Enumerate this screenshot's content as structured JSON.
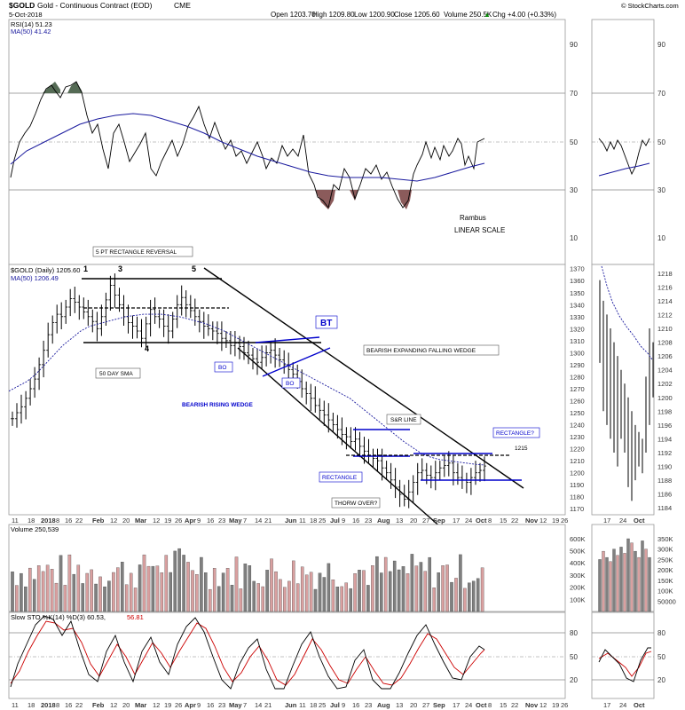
{
  "header": {
    "symbol": "$GOLD",
    "name": "Gold - Continuous Contract (EOD)",
    "exchange": "CME",
    "date": "5-Oct-2018",
    "open": "Open 1203.70",
    "high": "High 1209.80",
    "low": "Low 1200.90",
    "close": "Close 1205.60",
    "volume": "Volume 250.5K",
    "change": "Chg +4.00 (+0.33%)",
    "change_arrow": "▲",
    "watermark": "© StockCharts.com"
  },
  "colors": {
    "price_bar": "#000000",
    "ma_line": "#1a1a9e",
    "annotation_blue": "#0000cc",
    "volume_up": "#808080",
    "volume_down": "#d9a0a0",
    "rsi_overbought": "#556b55",
    "rsi_oversold": "#8b5b5b",
    "sto_d": "#cc0000"
  },
  "rsi_panel": {
    "title": "RSI(14) 51.23",
    "ma_label": "MA(50) 41.42",
    "ticks": [
      "90",
      "70",
      "50",
      "30",
      "10"
    ],
    "note1": "Rambus",
    "note2": "LINEAR SCALE"
  },
  "price_panel": {
    "title": "$GOLD (Daily) 1205.60",
    "ma_label": "MA(50) 1206.49",
    "ticks": [
      "1370",
      "1360",
      "1350",
      "1340",
      "1330",
      "1320",
      "1310",
      "1300",
      "1290",
      "1280",
      "1270",
      "1260",
      "1250",
      "1240",
      "1230",
      "1220",
      "1210",
      "1200",
      "1190",
      "1180",
      "1170"
    ],
    "weekly_ticks": [
      "1218",
      "1216",
      "1214",
      "1212",
      "1210",
      "1208",
      "1206",
      "1204",
      "1202",
      "1200",
      "1198",
      "1196",
      "1194",
      "1192",
      "1190",
      "1188",
      "1186",
      "1184"
    ],
    "annotations": {
      "rect_reversal": "5 PT RECTANGLE REVERSAL",
      "pt3": "3",
      "pt5": "5",
      "pt4": "4",
      "pt1": "1",
      "sma": "50 DAY SMA",
      "bo1": "BO",
      "bo2": "BO",
      "bt": "BT",
      "rising_wedge": "BEARISH RISING WEDGE",
      "falling_wedge": "BEARISH EXPANDING FALLING WEDGE",
      "sr_line": "S&R LINE",
      "rectangle": "RECTANGLE",
      "rectangle_q": "RECTANGLE?",
      "level": "1215",
      "throw_over": "THORW OVER?"
    }
  },
  "x_axis": {
    "labels": [
      "11",
      "18",
      "2018",
      "8",
      "16",
      "22",
      "Feb",
      "12",
      "20",
      "Mar",
      "12",
      "19",
      "26",
      "Apr",
      "9",
      "16",
      "23",
      "May",
      "7",
      "14",
      "21",
      "Jun",
      "11",
      "18",
      "25",
      "Jul",
      "9",
      "16",
      "23",
      "Aug",
      "13",
      "20",
      "27",
      "Sep",
      "17",
      "24",
      "Oct",
      "8",
      "15",
      "22",
      "Nov",
      "12",
      "19",
      "26"
    ],
    "weekly_labels": [
      "17",
      "24",
      "Oct"
    ]
  },
  "volume_panel": {
    "title": "Volume 250,539",
    "ticks": [
      "600K",
      "500K",
      "400K",
      "300K",
      "200K",
      "100K"
    ],
    "weekly_ticks": [
      "350K",
      "300K",
      "250K",
      "200K",
      "150K",
      "100K",
      "50000"
    ]
  },
  "sto_panel": {
    "title_a": "Slow STO %K(14) %D(3) 60.53,",
    "title_b": "56.81",
    "ticks": [
      "80",
      "50",
      "20"
    ]
  },
  "chart_data": {
    "type": "ohlc",
    "symbol": "$GOLD",
    "period": "Daily",
    "x_range": [
      "2017-12-11",
      "2018-10-05"
    ],
    "price_ylim": [
      1165,
      1372
    ],
    "series": [
      {
        "name": "$GOLD (Daily)",
        "close": [
          1245,
          1250,
          1255,
          1262,
          1270,
          1278,
          1290,
          1302,
          1315,
          1325,
          1332,
          1330,
          1338,
          1345,
          1342,
          1338,
          1334,
          1330,
          1326,
          1320,
          1330,
          1344,
          1356,
          1348,
          1340,
          1330,
          1325,
          1322,
          1318,
          1312,
          1324,
          1336,
          1330,
          1328,
          1322,
          1318,
          1328,
          1340,
          1346,
          1340,
          1335,
          1330,
          1326,
          1322,
          1320,
          1318,
          1316,
          1312,
          1310,
          1306,
          1308,
          1305,
          1300,
          1298,
          1295,
          1292,
          1296,
          1300,
          1302,
          1298,
          1294,
          1290,
          1286,
          1282,
          1276,
          1270,
          1266,
          1262,
          1256,
          1252,
          1248,
          1244,
          1240,
          1236,
          1232,
          1230,
          1226,
          1228,
          1222,
          1218,
          1214,
          1212,
          1210,
          1204,
          1200,
          1194,
          1188,
          1182,
          1178,
          1184,
          1192,
          1200,
          1202,
          1198,
          1196,
          1200,
          1204,
          1206,
          1208,
          1200,
          1196,
          1194,
          1192,
          1196,
          1200,
          1202,
          1205.6
        ]
      },
      {
        "name": "MA(50)",
        "values": [
          1268,
          1272,
          1276,
          1282,
          1290,
          1298,
          1306,
          1312,
          1318,
          1322,
          1324,
          1326,
          1328,
          1330,
          1331,
          1332,
          1332,
          1332,
          1331,
          1330,
          1328,
          1326,
          1324,
          1321,
          1318,
          1314,
          1310,
          1306,
          1302,
          1298,
          1294,
          1290,
          1286,
          1282,
          1278,
          1274,
          1270,
          1266,
          1262,
          1256,
          1250,
          1244,
          1238,
          1232,
          1226,
          1221,
          1216,
          1213,
          1211,
          1210,
          1209,
          1208,
          1207,
          1206.49
        ]
      }
    ],
    "rsi": {
      "name": "RSI(14)",
      "last": 51.23,
      "ma50_last": 41.42,
      "ylim": [
        0,
        100
      ],
      "levels": [
        30,
        70
      ]
    },
    "volume": {
      "name": "Volume",
      "last": 250539
    },
    "stochastic": {
      "name": "Slow STO %K(14) %D(3)",
      "k": 60.53,
      "d": 56.81,
      "levels": [
        20,
        50,
        80
      ]
    },
    "horizontal_levels": [
      1215
    ],
    "annotations": [
      "5 PT RECTANGLE REVERSAL",
      "BEARISH RISING WEDGE",
      "BEARISH EXPANDING FALLING WEDGE",
      "RECTANGLE",
      "RECTANGLE?",
      "S&R LINE",
      "BT",
      "BO",
      "THORW OVER?",
      "50 DAY SMA"
    ]
  }
}
